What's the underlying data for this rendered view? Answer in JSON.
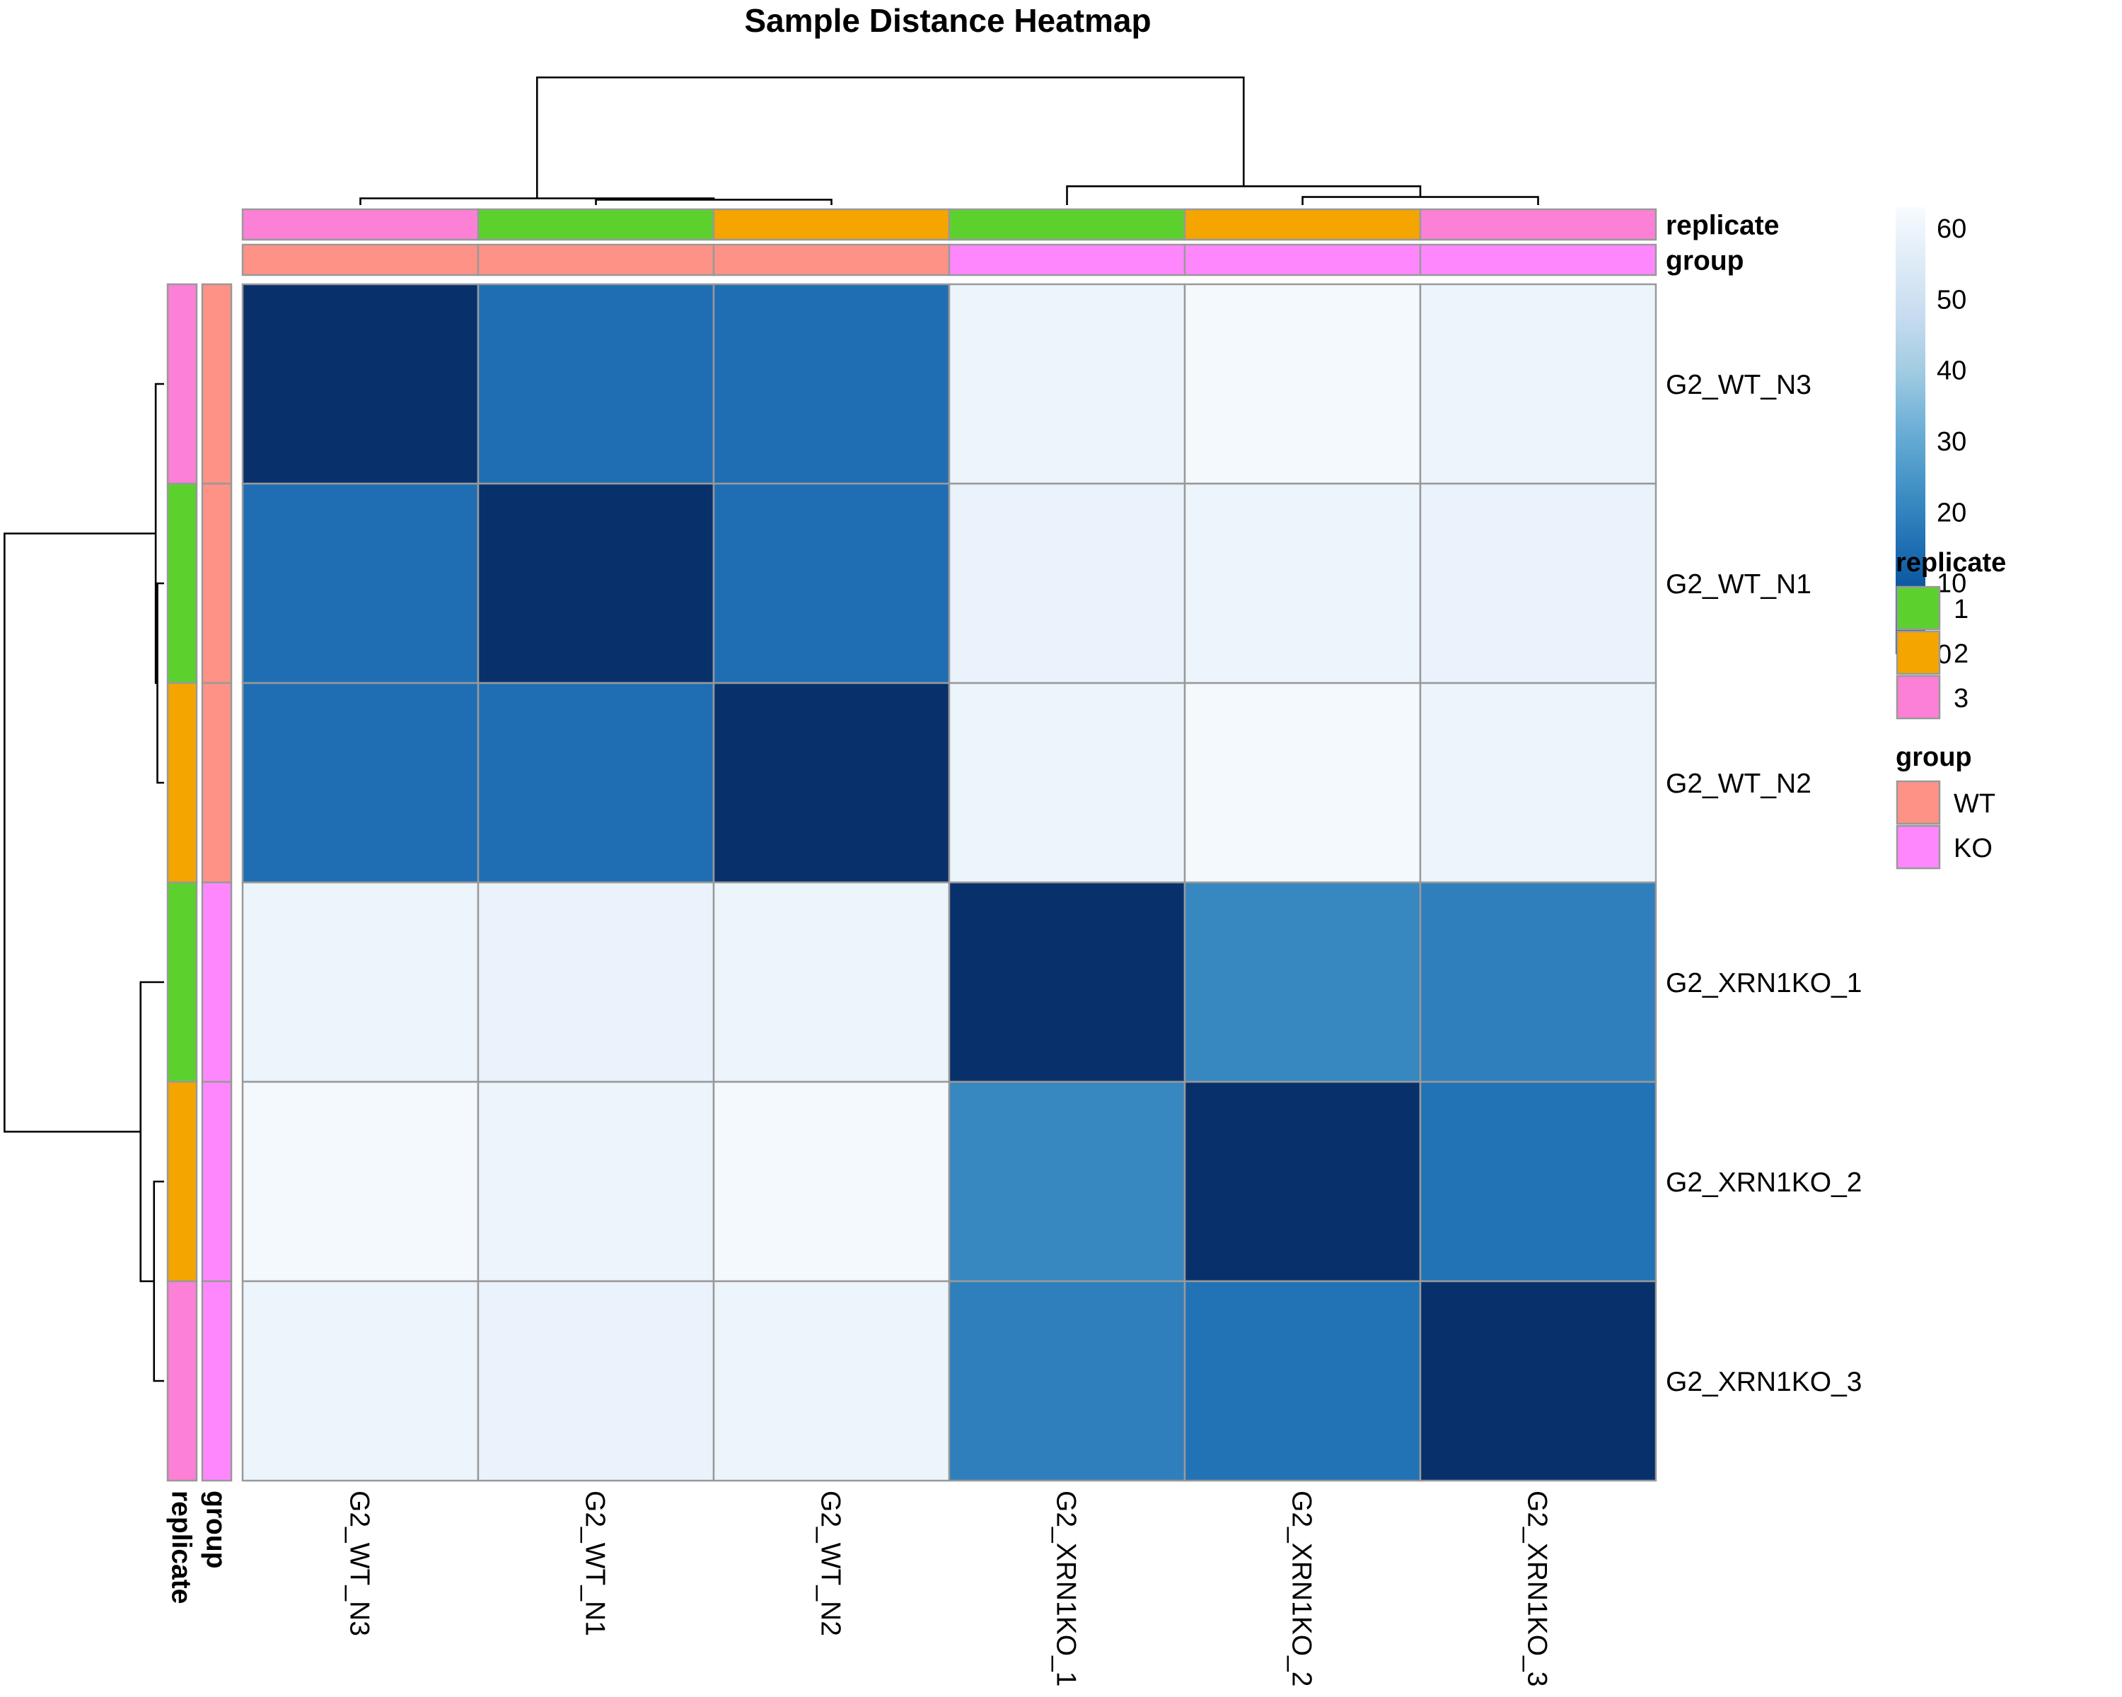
{
  "chart_data": {
    "type": "heatmap",
    "title": "Sample Distance Heatmap",
    "samples": [
      "G2_WT_N3",
      "G2_WT_N1",
      "G2_WT_N2",
      "G2_XRN1KO_1",
      "G2_XRN1KO_2",
      "G2_XRN1KO_3"
    ],
    "matrix": [
      [
        0,
        15,
        15,
        60,
        62,
        60
      ],
      [
        15,
        0,
        15,
        59,
        60,
        59
      ],
      [
        15,
        15,
        0,
        60,
        62,
        60
      ],
      [
        60,
        59,
        60,
        0,
        21,
        19
      ],
      [
        62,
        60,
        62,
        21,
        0,
        16
      ],
      [
        60,
        59,
        60,
        19,
        16,
        0
      ]
    ],
    "color_scale": {
      "min": 0,
      "max": 63,
      "ticks": [
        0,
        10,
        20,
        30,
        40,
        50,
        60
      ],
      "colors": [
        "#08306B",
        "#08519C",
        "#2171B5",
        "#4292C6",
        "#6BAED6",
        "#9ECAE1",
        "#C6DBEF",
        "#DEEBF7",
        "#F7FBFF"
      ]
    },
    "annotations": {
      "replicate": {
        "label": "replicate",
        "values": [
          "3",
          "1",
          "2",
          "1",
          "2",
          "3"
        ],
        "legend": [
          {
            "label": "1",
            "color": "#5CD12E"
          },
          {
            "label": "2",
            "color": "#F5A500"
          },
          {
            "label": "3",
            "color": "#FB80D6"
          }
        ]
      },
      "group": {
        "label": "group",
        "values": [
          "WT",
          "WT",
          "WT",
          "KO",
          "KO",
          "KO"
        ],
        "legend": [
          {
            "label": "WT",
            "color": "#FE9286"
          },
          {
            "label": "KO",
            "color": "#FE87FD"
          }
        ]
      }
    },
    "dendrogram": {
      "leaf_order": [
        "G2_WT_N3",
        "G2_WT_N1",
        "G2_WT_N2",
        "G2_XRN1KO_1",
        "G2_XRN1KO_2",
        "G2_XRN1KO_3"
      ],
      "merges": [
        {
          "a": "G2_WT_N1",
          "b": "G2_WT_N2",
          "height": 15
        },
        {
          "a": "G2_WT_N3",
          "b": "G2_WT_N1+G2_WT_N2",
          "height": 15.5
        },
        {
          "a": "G2_XRN1KO_2",
          "b": "G2_XRN1KO_3",
          "height": 16
        },
        {
          "a": "G2_XRN1KO_1",
          "b": "G2_XRN1KO_2+G2_XRN1KO_3",
          "height": 20
        },
        {
          "a": "WT",
          "b": "KO",
          "height": 60.5
        }
      ]
    }
  }
}
